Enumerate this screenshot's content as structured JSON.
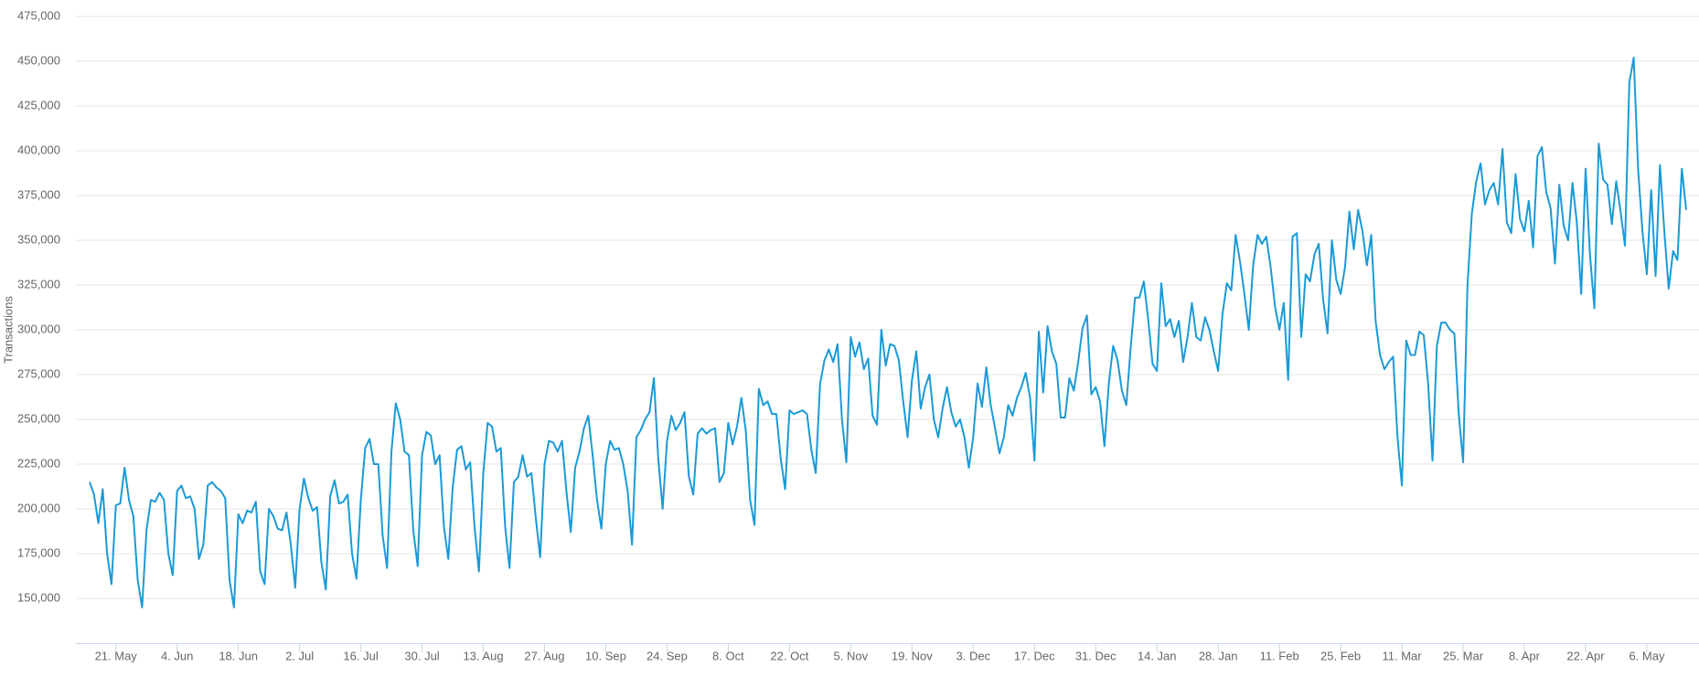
{
  "chart_data": {
    "type": "line",
    "y_label": "Transactions",
    "color": "#1a9ad6",
    "grid": true,
    "ylim": [
      125000,
      475000
    ],
    "yticks": [
      {
        "value": 150000,
        "label": "150,000"
      },
      {
        "value": 175000,
        "label": "175,000"
      },
      {
        "value": 200000,
        "label": "200,000"
      },
      {
        "value": 225000,
        "label": "225,000"
      },
      {
        "value": 250000,
        "label": "250,000"
      },
      {
        "value": 275000,
        "label": "275,000"
      },
      {
        "value": 300000,
        "label": "300,000"
      },
      {
        "value": 325000,
        "label": "325,000"
      },
      {
        "value": 350000,
        "label": "350,000"
      },
      {
        "value": 375000,
        "label": "375,000"
      },
      {
        "value": 400000,
        "label": "400,000"
      },
      {
        "value": 425000,
        "label": "425,000"
      },
      {
        "value": 450000,
        "label": "450,000"
      },
      {
        "value": 475000,
        "label": "475,000"
      }
    ],
    "categories": [
      null,
      null,
      null,
      null,
      null,
      null,
      "21. May",
      null,
      null,
      null,
      null,
      null,
      null,
      null,
      null,
      null,
      null,
      null,
      null,
      null,
      "4. Jun",
      null,
      null,
      null,
      null,
      null,
      null,
      null,
      null,
      null,
      null,
      null,
      null,
      null,
      "18. Jun",
      null,
      null,
      null,
      null,
      null,
      null,
      null,
      null,
      null,
      null,
      null,
      null,
      null,
      "2. Jul",
      null,
      null,
      null,
      null,
      null,
      null,
      null,
      null,
      null,
      null,
      null,
      null,
      null,
      "16. Jul",
      null,
      null,
      null,
      null,
      null,
      null,
      null,
      null,
      null,
      null,
      null,
      null,
      null,
      "30. Jul",
      null,
      null,
      null,
      null,
      null,
      null,
      null,
      null,
      null,
      null,
      null,
      null,
      null,
      "13. Aug",
      null,
      null,
      null,
      null,
      null,
      null,
      null,
      null,
      null,
      null,
      null,
      null,
      null,
      "27. Aug",
      null,
      null,
      null,
      null,
      null,
      null,
      null,
      null,
      null,
      null,
      null,
      null,
      null,
      "10. Sep",
      null,
      null,
      null,
      null,
      null,
      null,
      null,
      null,
      null,
      null,
      null,
      null,
      null,
      "24. Sep",
      null,
      null,
      null,
      null,
      null,
      null,
      null,
      null,
      null,
      null,
      null,
      null,
      null,
      "8. Oct",
      null,
      null,
      null,
      null,
      null,
      null,
      null,
      null,
      null,
      null,
      null,
      null,
      null,
      "22. Oct",
      null,
      null,
      null,
      null,
      null,
      null,
      null,
      null,
      null,
      null,
      null,
      null,
      null,
      "5. Nov",
      null,
      null,
      null,
      null,
      null,
      null,
      null,
      null,
      null,
      null,
      null,
      null,
      null,
      "19. Nov",
      null,
      null,
      null,
      null,
      null,
      null,
      null,
      null,
      null,
      null,
      null,
      null,
      null,
      "3. Dec",
      null,
      null,
      null,
      null,
      null,
      null,
      null,
      null,
      null,
      null,
      null,
      null,
      null,
      "17. Dec",
      null,
      null,
      null,
      null,
      null,
      null,
      null,
      null,
      null,
      null,
      null,
      null,
      null,
      "31. Dec",
      null,
      null,
      null,
      null,
      null,
      null,
      null,
      null,
      null,
      null,
      null,
      null,
      null,
      "14. Jan",
      null,
      null,
      null,
      null,
      null,
      null,
      null,
      null,
      null,
      null,
      null,
      null,
      null,
      "28. Jan",
      null,
      null,
      null,
      null,
      null,
      null,
      null,
      null,
      null,
      null,
      null,
      null,
      null,
      "11. Feb",
      null,
      null,
      null,
      null,
      null,
      null,
      null,
      null,
      null,
      null,
      null,
      null,
      null,
      "25. Feb",
      null,
      null,
      null,
      null,
      null,
      null,
      null,
      null,
      null,
      null,
      null,
      null,
      null,
      "11. Mar",
      null,
      null,
      null,
      null,
      null,
      null,
      null,
      null,
      null,
      null,
      null,
      null,
      null,
      "25. Mar",
      null,
      null,
      null,
      null,
      null,
      null,
      null,
      null,
      null,
      null,
      null,
      null,
      null,
      "8. Apr",
      null,
      null,
      null,
      null,
      null,
      null,
      null,
      null,
      null,
      null,
      null,
      null,
      null,
      "22. Apr",
      null,
      null,
      null,
      null,
      null,
      null,
      null,
      null,
      null,
      null,
      null,
      null,
      null,
      "6. May",
      null,
      null,
      null,
      null,
      null,
      null,
      null,
      null,
      null
    ],
    "values": [
      215000,
      208000,
      192000,
      211000,
      175000,
      158000,
      202000,
      203000,
      223000,
      205000,
      196000,
      160000,
      145000,
      188000,
      205000,
      204000,
      209000,
      205000,
      175000,
      163000,
      210000,
      213000,
      206000,
      207000,
      200000,
      172000,
      180000,
      213000,
      215000,
      212000,
      210000,
      206000,
      160000,
      145000,
      197000,
      192000,
      199000,
      198000,
      204000,
      165000,
      158000,
      200000,
      196000,
      189000,
      188000,
      198000,
      180000,
      156000,
      200000,
      217000,
      206000,
      199000,
      201000,
      170000,
      155000,
      207000,
      216000,
      203000,
      204000,
      208000,
      175000,
      161000,
      205000,
      234000,
      239000,
      225000,
      225000,
      185000,
      167000,
      232000,
      259000,
      250000,
      232000,
      230000,
      188000,
      168000,
      230000,
      243000,
      241000,
      225000,
      230000,
      190000,
      172000,
      212000,
      233000,
      235000,
      222000,
      226000,
      190000,
      165000,
      220000,
      248000,
      246000,
      232000,
      234000,
      190000,
      167000,
      215000,
      218000,
      230000,
      218000,
      220000,
      195000,
      173000,
      225000,
      238000,
      237000,
      232000,
      238000,
      210000,
      187000,
      223000,
      232000,
      245000,
      252000,
      230000,
      205000,
      189000,
      225000,
      238000,
      233000,
      234000,
      225000,
      210000,
      180000,
      240000,
      244000,
      250000,
      254000,
      273000,
      228000,
      200000,
      238000,
      252000,
      244000,
      248000,
      254000,
      218000,
      208000,
      242000,
      245000,
      242000,
      244000,
      245000,
      215000,
      220000,
      248000,
      236000,
      246000,
      262000,
      244000,
      205000,
      191000,
      267000,
      258000,
      260000,
      253000,
      253000,
      228000,
      211000,
      255000,
      253000,
      254000,
      255000,
      253000,
      233000,
      220000,
      270000,
      283000,
      289000,
      282000,
      292000,
      250000,
      226000,
      296000,
      285000,
      293000,
      278000,
      284000,
      252000,
      247000,
      300000,
      280000,
      292000,
      291000,
      283000,
      260000,
      240000,
      272000,
      288000,
      256000,
      268000,
      275000,
      250000,
      240000,
      256000,
      268000,
      254000,
      246000,
      250000,
      240000,
      223000,
      240000,
      270000,
      257000,
      279000,
      258000,
      245000,
      231000,
      240000,
      258000,
      252000,
      262000,
      268000,
      276000,
      262000,
      227000,
      299000,
      265000,
      302000,
      288000,
      281000,
      251000,
      251000,
      273000,
      266000,
      282000,
      301000,
      308000,
      264000,
      268000,
      260000,
      235000,
      270000,
      291000,
      283000,
      266000,
      258000,
      290000,
      318000,
      318000,
      327000,
      306000,
      281000,
      277000,
      326000,
      302000,
      306000,
      296000,
      305000,
      282000,
      296000,
      315000,
      296000,
      294000,
      307000,
      300000,
      288000,
      277000,
      309000,
      326000,
      322000,
      353000,
      338000,
      320000,
      300000,
      336000,
      353000,
      348000,
      352000,
      335000,
      313000,
      300000,
      315000,
      272000,
      352000,
      354000,
      296000,
      331000,
      327000,
      342000,
      348000,
      317000,
      298000,
      350000,
      328000,
      320000,
      335000,
      366000,
      345000,
      367000,
      355000,
      336000,
      353000,
      305000,
      286000,
      278000,
      282000,
      285000,
      240000,
      213000,
      294000,
      286000,
      286000,
      299000,
      297000,
      270000,
      227000,
      291000,
      304000,
      304000,
      300000,
      298000,
      253000,
      226000,
      325000,
      365000,
      383000,
      393000,
      370000,
      378000,
      382000,
      370000,
      401000,
      360000,
      354000,
      387000,
      362000,
      355000,
      372000,
      346000,
      397000,
      402000,
      377000,
      368000,
      337000,
      381000,
      358000,
      350000,
      382000,
      360000,
      320000,
      390000,
      342000,
      312000,
      404000,
      384000,
      381000,
      359000,
      383000,
      366000,
      347000,
      438000,
      452000,
      390000,
      355000,
      331000,
      378000,
      330000,
      392000,
      355000,
      323000,
      344000,
      339000,
      390000,
      367000
    ]
  }
}
